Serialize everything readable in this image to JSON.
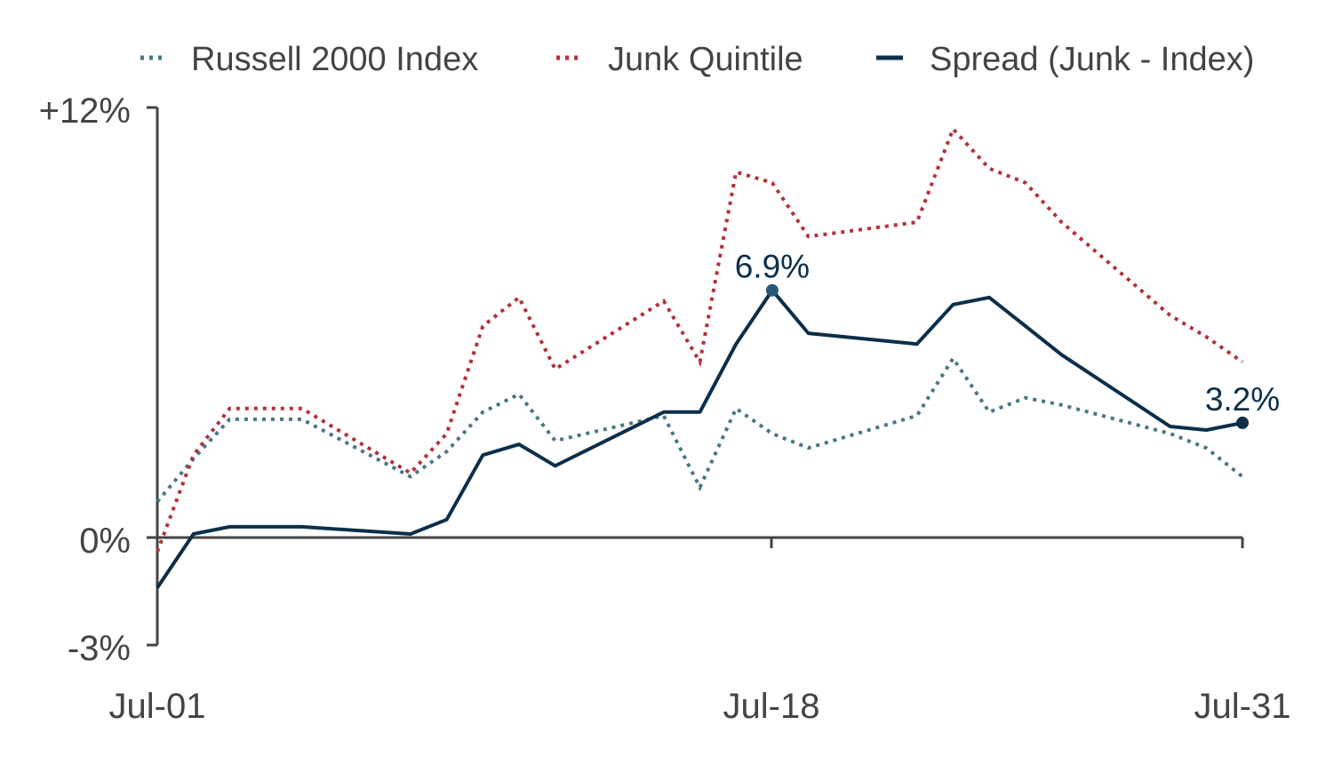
{
  "legend": [
    {
      "label": "Russell 2000 Index",
      "color": "#4a7785",
      "style": "dotted"
    },
    {
      "label": "Junk Quintile",
      "color": "#b1323b",
      "style": "dotted"
    },
    {
      "label": "Spread (Junk - Index)",
      "color": "#0b2f4a",
      "style": "solid"
    }
  ],
  "y_axis": {
    "ticks": [
      "+12%",
      "0%",
      "-3%"
    ]
  },
  "x_axis": {
    "ticks": [
      "Jul-01",
      "Jul-18",
      "Jul-31"
    ]
  },
  "annotations": [
    "6.9%",
    "3.2%"
  ],
  "chart_data": {
    "type": "line",
    "ylim": [
      -3,
      12
    ],
    "y_unit": "%",
    "y_ticks": [
      12,
      0,
      -3
    ],
    "x_tick_labels": [
      "Jul-01",
      "Jul-18",
      "Jul-31"
    ],
    "x_dates": [
      "Jul-01",
      "Jul-02",
      "Jul-03",
      "Jul-05",
      "Jul-08",
      "Jul-09",
      "Jul-10",
      "Jul-11",
      "Jul-12",
      "Jul-15",
      "Jul-16",
      "Jul-17",
      "Jul-18",
      "Jul-19",
      "Jul-22",
      "Jul-23",
      "Jul-24",
      "Jul-25",
      "Jul-26",
      "Jul-29",
      "Jul-30",
      "Jul-31"
    ],
    "series": [
      {
        "name": "Russell 2000 Index",
        "color": "#4a7785",
        "style": "dotted",
        "values": [
          1.0,
          2.2,
          3.3,
          3.3,
          1.7,
          2.4,
          3.5,
          4.0,
          2.7,
          3.4,
          1.4,
          3.6,
          2.9,
          2.5,
          3.4,
          5.0,
          3.5,
          3.9,
          3.7,
          2.9,
          2.5,
          1.7
        ]
      },
      {
        "name": "Junk Quintile",
        "color": "#b1323b",
        "style": "dotted",
        "values": [
          -0.4,
          2.3,
          3.6,
          3.6,
          1.8,
          2.9,
          5.9,
          6.7,
          4.7,
          6.6,
          4.9,
          10.2,
          9.9,
          8.4,
          8.8,
          11.4,
          10.3,
          9.9,
          8.8,
          6.2,
          5.6,
          4.9
        ]
      },
      {
        "name": "Spread (Junk - Index)",
        "color": "#0b2f4a",
        "style": "solid",
        "values": [
          -1.4,
          0.1,
          0.3,
          0.3,
          0.1,
          0.5,
          2.3,
          2.6,
          2.0,
          3.5,
          3.5,
          5.4,
          6.9,
          5.7,
          5.4,
          6.5,
          6.7,
          5.9,
          5.1,
          3.1,
          3.0,
          3.2
        ],
        "highlight": [
          {
            "x": "Jul-18",
            "label": "6.9%"
          },
          {
            "x": "Jul-31",
            "label": "3.2%"
          }
        ]
      }
    ]
  }
}
